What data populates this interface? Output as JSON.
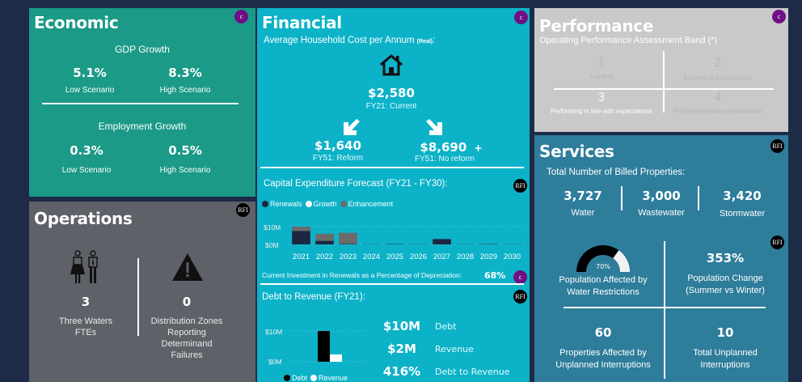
{
  "economic": {
    "title": "Economic",
    "badge": "c",
    "gdp": {
      "heading": "GDP Growth",
      "low_value": "5.1%",
      "low_label": "Low Scenario",
      "high_value": "8.3%",
      "high_label": "High Scenario"
    },
    "employment": {
      "heading": "Employment Growth",
      "low_value": "0.3%",
      "low_label": "Low Scenario",
      "high_value": "0.5%",
      "high_label": "High Scenario"
    }
  },
  "operations": {
    "title": "Operations",
    "badge": "RFI",
    "ftes": {
      "value": "3",
      "label_line1": "Three Waters",
      "label_line2": "FTEs"
    },
    "zones": {
      "value": "0",
      "label_line1": "Distribution Zones",
      "label_line2": "Reporting",
      "label_line3": "Determinand",
      "label_line4": "Failures"
    }
  },
  "financial": {
    "title": "Financial",
    "badge": "c",
    "household": {
      "heading": "Average Household Cost per Annum",
      "heading_suffix": "(Real)",
      "heading_colon": ":",
      "current_value": "$2,580",
      "current_label": "FY21: Current",
      "reform_value": "$1,640",
      "reform_label": "FY51: Reform",
      "noreform_value": "$8,690",
      "noreform_plus": "+",
      "noreform_label": "FY51: No reform"
    },
    "capex": {
      "heading": "Capital Expenditure Forecast (FY21 - FY30):",
      "badge": "RFI",
      "legend": [
        {
          "label": "Renewals",
          "color": "#1c2640"
        },
        {
          "label": "Growth",
          "color": "#ffffff"
        },
        {
          "label": "Enhancement",
          "color": "#6b6b6b"
        }
      ],
      "renewals_note": "Current Investment in Renewals as a Percentage of Depreciation:",
      "renewals_pct": "68%",
      "renewals_badge": "c"
    },
    "debt": {
      "heading": "Debt to Revenue (FY21):",
      "badge": "RFI",
      "debt_value": "$10M",
      "debt_label": "Debt",
      "revenue_value": "$2M",
      "revenue_label": "Revenue",
      "ratio_value": "416%",
      "ratio_label": "Debt to Revenue"
    }
  },
  "performance": {
    "title": "Performance",
    "badge": "c",
    "subtitle": "Operating Performance Assessment Band (*)",
    "bands": [
      {
        "number": "1",
        "label": "Leading",
        "active": false
      },
      {
        "number": "2",
        "label": "Exceeding expectations",
        "active": false
      },
      {
        "number": "3",
        "label": "Performing in line with expectations",
        "active": true
      },
      {
        "number": "4",
        "label": "Performing below expectations",
        "active": false
      }
    ]
  },
  "services": {
    "title": "Services",
    "badge": "RFI",
    "billed_heading": "Total Number of Billed Properties:",
    "billed": [
      {
        "value": "3,727",
        "label": "Water"
      },
      {
        "value": "3,000",
        "label": "Wastewater"
      },
      {
        "value": "3,420",
        "label": "Stormwater"
      }
    ],
    "quad_badge": "RFI",
    "restrictions": {
      "gauge_pct": 70,
      "gauge_label": "70%",
      "label_line1": "Population Affected by",
      "label_line2": "Water Restrictions"
    },
    "pop_change": {
      "value": "353%",
      "label_line1": "Population Change",
      "label_line2": "(Summer vs Winter)"
    },
    "properties_affected": {
      "value": "60",
      "label_line1": "Properties Affected by",
      "label_line2": "Unplanned Interruptions"
    },
    "unplanned": {
      "value": "10",
      "label_line1": "Total Unplanned",
      "label_line2": "Interruptions"
    }
  },
  "chart_data": [
    {
      "type": "bar",
      "stacked": true,
      "title": "Capital Expenditure Forecast (FY21 - FY30):",
      "categories": [
        "2021",
        "2022",
        "2023",
        "2024",
        "2025",
        "2026",
        "2027",
        "2028",
        "2029",
        "2030"
      ],
      "series": [
        {
          "name": "Renewals",
          "color": "#1c2640",
          "values": [
            7.5,
            2.0,
            0.3,
            0.1,
            0.2,
            0.1,
            3.0,
            0.1,
            0.2,
            0.1
          ]
        },
        {
          "name": "Growth",
          "color": "#ffffff",
          "values": [
            0,
            0,
            0,
            0,
            0,
            0,
            0,
            0,
            0,
            0
          ]
        },
        {
          "name": "Enhancement",
          "color": "#6b6b6b",
          "values": [
            2.5,
            4.0,
            6.2,
            0,
            0,
            0,
            0,
            0,
            0,
            0
          ]
        }
      ],
      "yticks": [
        "$0M",
        "$10M"
      ],
      "ylim": [
        0,
        10
      ],
      "legend": "top-left",
      "grid": true
    },
    {
      "type": "bar",
      "title": "Debt to Revenue (FY21):",
      "categories": [
        "FY21"
      ],
      "series": [
        {
          "name": "Debt",
          "color": "#000000",
          "values": [
            10
          ]
        },
        {
          "name": "Revenue",
          "color": "#ffffff",
          "values": [
            2.4
          ]
        }
      ],
      "yticks": [
        "$0M",
        "$10M"
      ],
      "ylim": [
        0,
        10
      ],
      "legend": "bottom",
      "grid": true
    }
  ]
}
